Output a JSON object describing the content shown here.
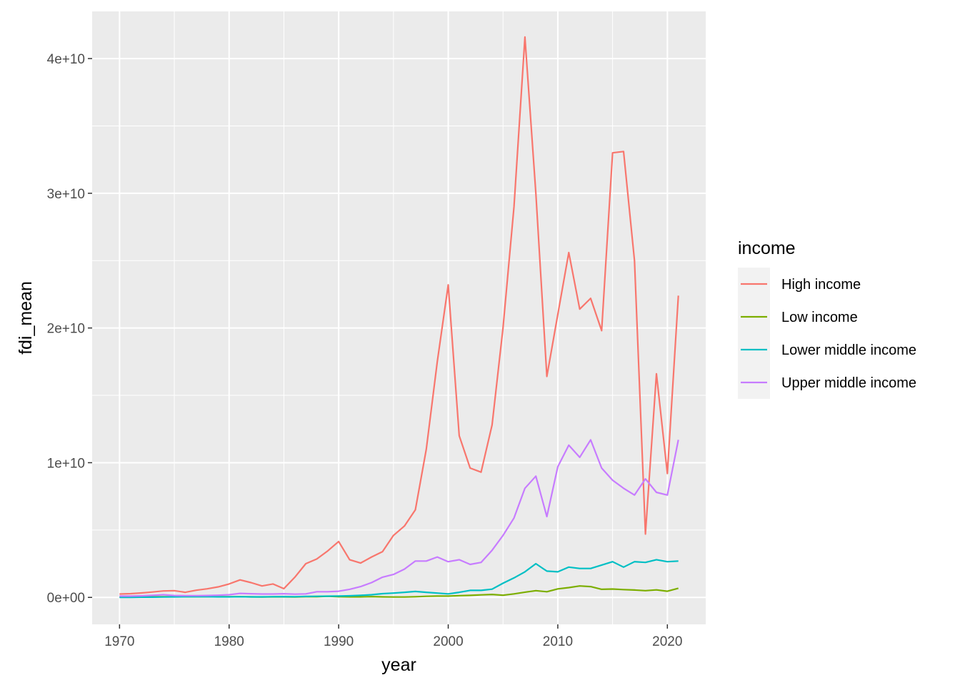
{
  "chart_data": {
    "type": "line",
    "xlabel": "year",
    "ylabel": "fdi_mean",
    "xlim": [
      1967.5,
      2023.5
    ],
    "ylim": [
      -2000000000.0,
      43500000000.0
    ],
    "x_ticks": [
      1970,
      1980,
      1990,
      2000,
      2010,
      2020
    ],
    "x_tick_labels": [
      "1970",
      "1980",
      "1990",
      "2000",
      "2010",
      "2020"
    ],
    "y_ticks": [
      0,
      10000000000.0,
      20000000000.0,
      30000000000.0,
      40000000000.0
    ],
    "y_tick_labels": [
      "0e+00",
      "1e+10",
      "2e+10",
      "3e+10",
      "4e+10"
    ],
    "grid": true,
    "legend": {
      "title": "income",
      "position": "right"
    },
    "x": [
      1970,
      1971,
      1972,
      1973,
      1974,
      1975,
      1976,
      1977,
      1978,
      1979,
      1980,
      1981,
      1982,
      1983,
      1984,
      1985,
      1986,
      1987,
      1988,
      1989,
      1990,
      1991,
      1992,
      1993,
      1994,
      1995,
      1996,
      1997,
      1998,
      1999,
      2000,
      2001,
      2002,
      2003,
      2004,
      2005,
      2006,
      2007,
      2008,
      2009,
      2010,
      2011,
      2012,
      2013,
      2014,
      2015,
      2016,
      2017,
      2018,
      2019,
      2020,
      2021
    ],
    "series": [
      {
        "name": "High income",
        "color": "#F8766D",
        "values": [
          250000000.0,
          280000000.0,
          330000000.0,
          400000000.0,
          480000000.0,
          500000000.0,
          380000000.0,
          530000000.0,
          640000000.0,
          780000000.0,
          1000000000.0,
          1300000000.0,
          1100000000.0,
          850000000.0,
          1000000000.0,
          650000000.0,
          1500000000.0,
          2500000000.0,
          2850000000.0,
          3450000000.0,
          4150000000.0,
          2800000000.0,
          2550000000.0,
          3000000000.0,
          3400000000.0,
          4600000000.0,
          5300000000.0,
          6500000000.0,
          11000000000.0,
          17500000000.0,
          23200000000.0,
          12000000000.0,
          9600000000.0,
          9300000000.0,
          12800000000.0,
          20000000000.0,
          29000000000.0,
          41600000000.0,
          30000000000.0,
          16400000000.0,
          21000000000.0,
          25600000000.0,
          21400000000.0,
          22200000000.0,
          19800000000.0,
          33000000000.0,
          33100000000.0,
          25000000000.0,
          4700000000.0,
          16600000000.0,
          9200000000.0,
          22400000000.0
        ]
      },
      {
        "name": "Low income",
        "color": "#7CAE00",
        "values": [
          30000000.0,
          30000000.0,
          40000000.0,
          50000000.0,
          50000000.0,
          50000000.0,
          50000000.0,
          50000000.0,
          50000000.0,
          50000000.0,
          50000000.0,
          50000000.0,
          40000000.0,
          30000000.0,
          40000000.0,
          40000000.0,
          30000000.0,
          50000000.0,
          50000000.0,
          80000000.0,
          50000000.0,
          40000000.0,
          40000000.0,
          60000000.0,
          40000000.0,
          30000000.0,
          30000000.0,
          50000000.0,
          80000000.0,
          100000000.0,
          100000000.0,
          130000000.0,
          150000000.0,
          190000000.0,
          220000000.0,
          160000000.0,
          260000000.0,
          390000000.0,
          500000000.0,
          420000000.0,
          630000000.0,
          730000000.0,
          850000000.0,
          800000000.0,
          600000000.0,
          620000000.0,
          580000000.0,
          550000000.0,
          500000000.0,
          560000000.0,
          460000000.0,
          680000000.0
        ]
      },
      {
        "name": "Lower middle income",
        "color": "#00BFC4",
        "values": [
          10000000.0,
          10000000.0,
          20000000.0,
          20000000.0,
          30000000.0,
          40000000.0,
          50000000.0,
          50000000.0,
          50000000.0,
          40000000.0,
          40000000.0,
          50000000.0,
          40000000.0,
          40000000.0,
          50000000.0,
          60000000.0,
          50000000.0,
          70000000.0,
          80000000.0,
          90000000.0,
          100000000.0,
          120000000.0,
          150000000.0,
          200000000.0,
          280000000.0,
          320000000.0,
          380000000.0,
          440000000.0,
          380000000.0,
          320000000.0,
          260000000.0,
          380000000.0,
          520000000.0,
          520000000.0,
          610000000.0,
          1050000000.0,
          1450000000.0,
          1900000000.0,
          2500000000.0,
          1950000000.0,
          1900000000.0,
          2250000000.0,
          2150000000.0,
          2150000000.0,
          2400000000.0,
          2650000000.0,
          2250000000.0,
          2650000000.0,
          2600000000.0,
          2800000000.0,
          2650000000.0,
          2700000000.0
        ]
      },
      {
        "name": "Upper middle income",
        "color": "#C77CFF",
        "values": [
          100000000.0,
          100000000.0,
          120000000.0,
          150000000.0,
          200000000.0,
          140000000.0,
          130000000.0,
          130000000.0,
          140000000.0,
          160000000.0,
          200000000.0,
          300000000.0,
          270000000.0,
          250000000.0,
          250000000.0,
          270000000.0,
          240000000.0,
          260000000.0,
          420000000.0,
          420000000.0,
          460000000.0,
          600000000.0,
          800000000.0,
          1100000000.0,
          1500000000.0,
          1700000000.0,
          2100000000.0,
          2700000000.0,
          2700000000.0,
          3000000000.0,
          2650000000.0,
          2800000000.0,
          2450000000.0,
          2600000000.0,
          3500000000.0,
          4600000000.0,
          5900000000.0,
          8100000000.0,
          9000000000.0,
          6000000000.0,
          9700000000.0,
          11300000000.0,
          10400000000.0,
          11700000000.0,
          9600000000.0,
          8700000000.0,
          8100000000.0,
          7600000000.0,
          8800000000.0,
          7800000000.0,
          7600000000.0,
          11700000000.0
        ]
      }
    ]
  }
}
